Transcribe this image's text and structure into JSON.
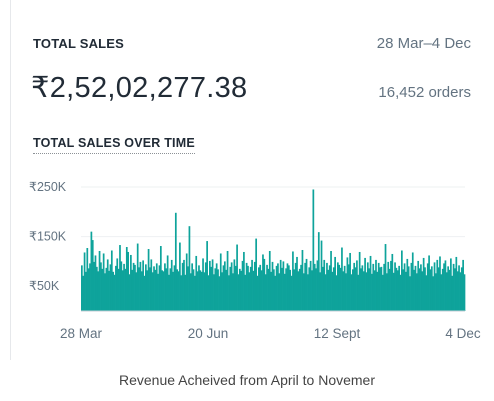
{
  "card": {
    "title": "TOTAL SALES",
    "date_range": "28 Mar–4 Dec",
    "total_value": "₹2,52,02,277.38",
    "orders": "16,452 orders",
    "subtitle": "TOTAL SALES OVER TIME"
  },
  "caption": "Revenue Acheived from April to Novemer",
  "colors": {
    "bar": "#0ea39b",
    "grid": "#eef0f2",
    "axis_text": "#637381"
  },
  "chart_data": {
    "type": "bar",
    "title": "TOTAL SALES OVER TIME",
    "ylabel": "",
    "xlabel": "",
    "y_ticks": [
      "₹250K",
      "₹150K",
      "₹50K"
    ],
    "y_tick_values": [
      250000,
      150000,
      50000
    ],
    "ylim": [
      0,
      300000
    ],
    "x_ticks": [
      "28 Mar",
      "20 Jun",
      "12 Sept",
      "4 Dec"
    ],
    "grid": true,
    "values": [
      92000,
      71000,
      118000,
      79000,
      127000,
      86000,
      96000,
      160000,
      143000,
      99000,
      112000,
      89000,
      80000,
      121000,
      98000,
      85000,
      116000,
      76000,
      87000,
      104000,
      81000,
      94000,
      122000,
      79000,
      73000,
      91000,
      106000,
      85000,
      133000,
      100000,
      82000,
      95000,
      85000,
      129000,
      119000,
      74000,
      113000,
      83000,
      97000,
      93000,
      78000,
      136000,
      88000,
      99000,
      80000,
      102000,
      71000,
      94000,
      82000,
      125000,
      88000,
      104000,
      78000,
      90000,
      83000,
      96000,
      75000,
      92000,
      131000,
      82000,
      80000,
      96000,
      86000,
      112000,
      73000,
      86000,
      103000,
      79000,
      92000,
      198000,
      84000,
      80000,
      138000,
      72000,
      97000,
      103000,
      73000,
      116000,
      90000,
      171000,
      76000,
      96000,
      84000,
      71000,
      111000,
      80000,
      92000,
      82000,
      79000,
      106000,
      78000,
      98000,
      141000,
      72000,
      101000,
      89000,
      104000,
      74000,
      86000,
      96000,
      84000,
      70000,
      116000,
      78000,
      92000,
      100000,
      83000,
      121000,
      72000,
      89000,
      98000,
      76000,
      104000,
      91000,
      134000,
      74000,
      85000,
      81000,
      101000,
      119000,
      73000,
      97000,
      91000,
      78000,
      89000,
      103000,
      81000,
      99000,
      146000,
      71000,
      88000,
      93000,
      82000,
      114000,
      105000,
      74000,
      93000,
      85000,
      121000,
      79000,
      99000,
      84000,
      71000,
      91000,
      96000,
      76000,
      103000,
      87000,
      100000,
      75000,
      86000,
      96000,
      92000,
      83000,
      71000,
      120000,
      84000,
      97000,
      109000,
      80000,
      85000,
      93000,
      123000,
      76000,
      97000,
      105000,
      74000,
      88000,
      101000,
      82000,
      245000,
      95000,
      86000,
      102000,
      159000,
      78000,
      142000,
      89000,
      103000,
      74000,
      97000,
      83000,
      92000,
      121000,
      79000,
      88000,
      109000,
      72000,
      98000,
      93000,
      87000,
      128000,
      80000,
      91000,
      76000,
      108000,
      94000,
      117000,
      74000,
      84000,
      97000,
      88000,
      102000,
      73000,
      119000,
      86000,
      92000,
      80000,
      107000,
      78000,
      98000,
      86000,
      111000,
      75000,
      95000,
      82000,
      103000,
      79000,
      97000,
      88000,
      89000,
      73000,
      95000,
      135000,
      76000,
      99000,
      85000,
      101000,
      115000,
      77000,
      98000,
      87000,
      82000,
      91000,
      73000,
      122000,
      84000,
      96000,
      79000,
      105000,
      90000,
      70000,
      97000,
      118000,
      83000,
      91000,
      76000,
      101000,
      86000,
      94000,
      80000,
      107000,
      88000,
      72000,
      96000,
      112000,
      84000,
      90000,
      70000,
      98000,
      76000,
      103000,
      88000,
      110000,
      74000,
      85000,
      96000,
      102000,
      78000,
      90000,
      83000,
      106000,
      71000,
      95000,
      86000,
      109000,
      80000,
      92000,
      78000,
      88000,
      103000,
      74000
    ]
  }
}
